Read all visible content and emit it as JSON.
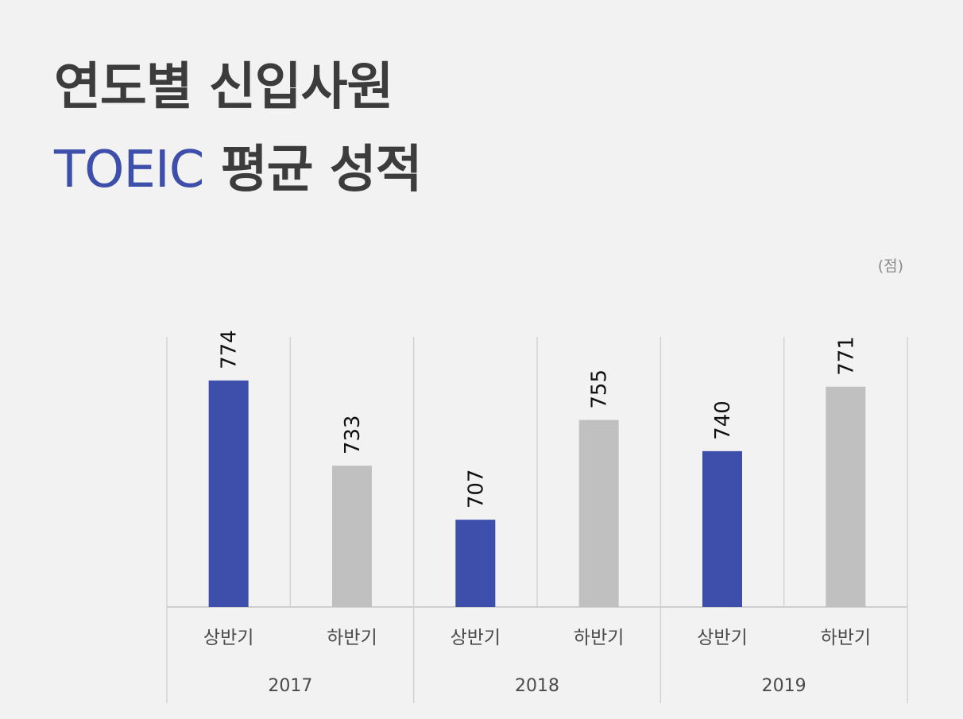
{
  "header": {
    "title_line1": "연도별 신입사원",
    "title_accent": "TOEIC",
    "title_rest": " 평균 성적"
  },
  "unit_label": "(점)",
  "colors": {
    "first_half": "#3d4eab",
    "second_half": "#c0c0c0",
    "text": "#3c3c3c",
    "accent": "#3d4eab"
  },
  "chart_data": {
    "type": "bar",
    "title": "연도별 신입사원 TOEIC 평균 성적",
    "ylabel": "(점)",
    "groups": [
      "2017",
      "2018",
      "2019"
    ],
    "categories": [
      "상반기",
      "하반기",
      "상반기",
      "하반기",
      "상반기",
      "하반기"
    ],
    "category_groups": [
      "2017",
      "2017",
      "2018",
      "2018",
      "2019",
      "2019"
    ],
    "values": [
      774,
      733,
      707,
      755,
      740,
      771
    ],
    "value_labels": [
      "774",
      "733",
      "707",
      "755",
      "740",
      "771"
    ],
    "ylim": [
      665,
      795
    ],
    "grid": false,
    "legend": "none"
  }
}
